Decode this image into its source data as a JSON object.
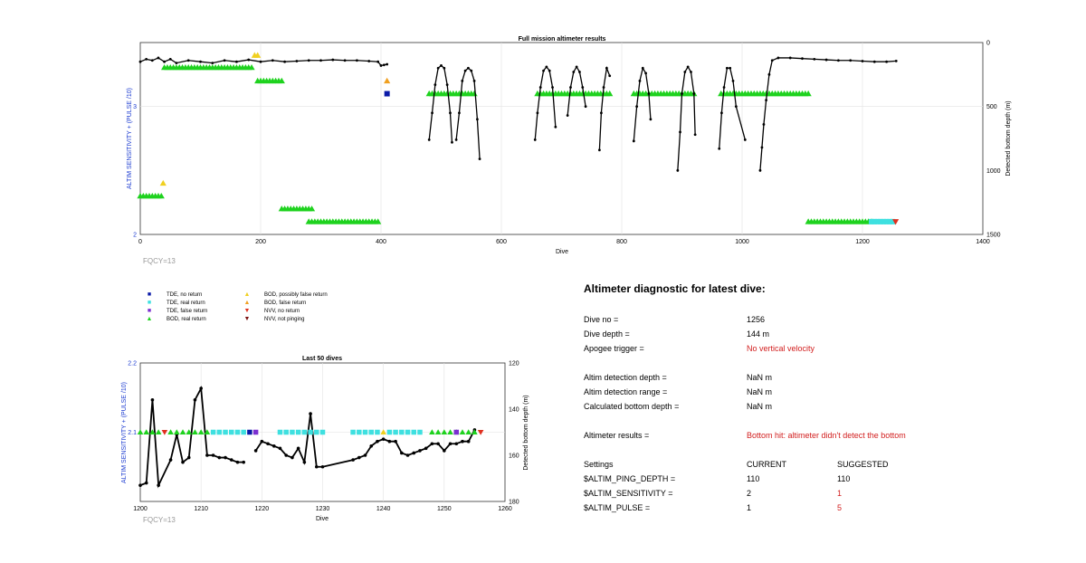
{
  "top_chart": {
    "title": "Full mission altimeter results",
    "ylabel_left": "ALTIM SENSITIVITY + (PULSE /10)",
    "ylabel_right": "Detected bottom depth (m)",
    "xlabel": "Dive",
    "x_ticks": [
      "0",
      "200",
      "400",
      "600",
      "800",
      "1000",
      "1200",
      "1400"
    ],
    "y_left_ticks": [
      "2",
      "3"
    ],
    "y_right_ticks": [
      "0",
      "500",
      "1000",
      "1500"
    ],
    "footnote": "FQCY=13"
  },
  "bottom_chart": {
    "title": "Last 50 dives",
    "ylabel_left": "ALTIM SENSITIVITY + (PULSE /10)",
    "ylabel_right": "Detected bottom depth (m)",
    "xlabel": "Dive",
    "x_ticks": [
      "1200",
      "1210",
      "1220",
      "1230",
      "1240",
      "1250",
      "1260"
    ],
    "y_left_ticks": [
      "2.1",
      "2.2"
    ],
    "y_right_ticks": [
      "120",
      "140",
      "160",
      "180"
    ],
    "footnote": "FQCY=13"
  },
  "legend": {
    "items": [
      {
        "label": "TDE, no return",
        "color": "#0a1aa8",
        "shape": "square"
      },
      {
        "label": "TDE, real return",
        "color": "#3ee0e0",
        "shape": "square"
      },
      {
        "label": "TDE, false return",
        "color": "#7a2fd0",
        "shape": "square"
      },
      {
        "label": "BOD, real return",
        "color": "#1ed21e",
        "shape": "triangle-up"
      },
      {
        "label": "BOD, possibly false return",
        "color": "#f0d020",
        "shape": "triangle-up"
      },
      {
        "label": "BOD, false return",
        "color": "#f0a020",
        "shape": "triangle-up"
      },
      {
        "label": "NVV, no return",
        "color": "#e03020",
        "shape": "triangle-down"
      },
      {
        "label": "NVV, not pinging",
        "color": "#7a1010",
        "shape": "triangle-down"
      }
    ]
  },
  "diagnostic": {
    "title": "Altimeter diagnostic for latest dive:",
    "dive_no_label": "Dive no =",
    "dive_no": "1256",
    "dive_depth_label": "Dive depth =",
    "dive_depth": "144 m",
    "apogee_label": "Apogee trigger =",
    "apogee": "No vertical velocity",
    "altim_depth_label": "Altim detection depth =",
    "altim_depth": "NaN m",
    "altim_range_label": "Altim detection range =",
    "altim_range": "NaN m",
    "calc_depth_label": "Calculated bottom depth =",
    "calc_depth": "NaN m",
    "results_label": "Altimeter results =",
    "results": "Bottom hit: altimeter didn't detect the bottom",
    "settings_label": "Settings",
    "current_label": "CURRENT",
    "suggested_label": "SUGGESTED",
    "settings": [
      {
        "name": "$ALTIM_PING_DEPTH =",
        "current": "110",
        "suggested": "110",
        "changed": false
      },
      {
        "name": "$ALTIM_SENSITIVITY =",
        "current": "2",
        "suggested": "1",
        "changed": true
      },
      {
        "name": "$ALTIM_PULSE =",
        "current": "1",
        "suggested": "5",
        "changed": true
      }
    ]
  },
  "chart_data": [
    {
      "type": "scatter",
      "title": "Full mission altimeter results",
      "xlabel": "Dive",
      "ylabel_left": "ALTIM SENSITIVITY + (PULSE /10)",
      "ylabel_right": "Detected bottom depth (m)",
      "xlim": [
        0,
        1400
      ],
      "ylim_left": [
        2,
        3.5
      ],
      "ylim_right": [
        1500,
        0
      ],
      "grid": true,
      "depth_series": [
        {
          "segment": 1,
          "points": [
            [
              0,
              150
            ],
            [
              10,
              130
            ],
            [
              20,
              140
            ],
            [
              30,
              120
            ],
            [
              40,
              150
            ],
            [
              50,
              130
            ],
            [
              60,
              160
            ],
            [
              80,
              140
            ],
            [
              100,
              150
            ],
            [
              120,
              160
            ],
            [
              140,
              140
            ],
            [
              160,
              150
            ],
            [
              180,
              135
            ],
            [
              200,
              150
            ],
            [
              220,
              140
            ],
            [
              240,
              150
            ],
            [
              260,
              145
            ],
            [
              280,
              140
            ],
            [
              300,
              140
            ],
            [
              320,
              135
            ],
            [
              340,
              140
            ],
            [
              360,
              140
            ],
            [
              380,
              145
            ],
            [
              395,
              150
            ],
            [
              400,
              180
            ],
            [
              405,
              175
            ],
            [
              410,
              170
            ]
          ]
        },
        {
          "segment": 2,
          "points": [
            [
              480,
              760
            ],
            [
              485,
              550
            ],
            [
              490,
              330
            ],
            [
              495,
              200
            ],
            [
              500,
              180
            ],
            [
              505,
              200
            ],
            [
              510,
              330
            ],
            [
              515,
              550
            ],
            [
              518,
              780
            ]
          ]
        },
        {
          "segment": 3,
          "points": [
            [
              525,
              760
            ],
            [
              530,
              550
            ],
            [
              535,
              300
            ],
            [
              540,
              220
            ],
            [
              545,
              200
            ],
            [
              550,
              220
            ],
            [
              555,
              300
            ],
            [
              560,
              600
            ],
            [
              564,
              910
            ]
          ]
        },
        {
          "segment": 4,
          "points": [
            [
              656,
              760
            ],
            [
              660,
              550
            ],
            [
              665,
              350
            ],
            [
              670,
              220
            ],
            [
              675,
              190
            ],
            [
              680,
              220
            ],
            [
              685,
              350
            ],
            [
              690,
              660
            ]
          ]
        },
        {
          "segment": 5,
          "points": [
            [
              710,
              570
            ],
            [
              715,
              350
            ],
            [
              720,
              230
            ],
            [
              725,
              190
            ],
            [
              730,
              230
            ],
            [
              735,
              350
            ],
            [
              740,
              500
            ]
          ]
        },
        {
          "segment": 6,
          "points": [
            [
              763,
              840
            ],
            [
              766,
              550
            ],
            [
              770,
              350
            ],
            [
              775,
              200
            ],
            [
              780,
              260
            ]
          ]
        },
        {
          "segment": 7,
          "points": [
            [
              820,
              770
            ],
            [
              825,
              500
            ],
            [
              830,
              300
            ],
            [
              835,
              200
            ],
            [
              840,
              240
            ],
            [
              845,
              400
            ],
            [
              848,
              600
            ]
          ]
        },
        {
          "segment": 8,
          "points": [
            [
              893,
              1000
            ],
            [
              897,
              700
            ],
            [
              900,
              400
            ],
            [
              905,
              230
            ],
            [
              910,
              190
            ],
            [
              915,
              230
            ],
            [
              920,
              400
            ],
            [
              922,
              720
            ]
          ]
        },
        {
          "segment": 9,
          "points": [
            [
              962,
              830
            ],
            [
              966,
              550
            ],
            [
              970,
              350
            ],
            [
              975,
              200
            ],
            [
              980,
              200
            ],
            [
              985,
              300
            ],
            [
              990,
              500
            ],
            [
              1005,
              760
            ]
          ]
        },
        {
          "segment": 10,
          "points": [
            [
              1030,
              1000
            ],
            [
              1033,
              820
            ],
            [
              1036,
              640
            ],
            [
              1040,
              450
            ],
            [
              1045,
              250
            ],
            [
              1050,
              140
            ],
            [
              1060,
              120
            ],
            [
              1080,
              120
            ],
            [
              1100,
              125
            ],
            [
              1120,
              130
            ],
            [
              1140,
              135
            ],
            [
              1160,
              140
            ],
            [
              1180,
              140
            ],
            [
              1200,
              145
            ],
            [
              1220,
              150
            ],
            [
              1240,
              150
            ],
            [
              1256,
              144
            ]
          ]
        }
      ],
      "marker_bands": [
        {
          "kind": "BOD, real return",
          "x": [
            40,
            185
          ],
          "sensitivity": 3.305
        },
        {
          "kind": "BOD, real return",
          "x": [
            195,
            235
          ],
          "sensitivity": 3.2
        },
        {
          "kind": "BOD, real return",
          "x": [
            0,
            35
          ],
          "sensitivity": 2.3
        },
        {
          "kind": "BOD, real return",
          "x": [
            235,
            285
          ],
          "sensitivity": 2.2
        },
        {
          "kind": "BOD, real return",
          "x": [
            280,
            395
          ],
          "sensitivity": 2.1
        },
        {
          "kind": "BOD, real return",
          "x": [
            480,
            555
          ],
          "sensitivity": 3.1
        },
        {
          "kind": "BOD, real return",
          "x": [
            660,
            780
          ],
          "sensitivity": 3.1
        },
        {
          "kind": "BOD, real return",
          "x": [
            820,
            920
          ],
          "sensitivity": 3.1
        },
        {
          "kind": "BOD, real return",
          "x": [
            965,
            1110
          ],
          "sensitivity": 3.1
        },
        {
          "kind": "BOD, real return",
          "x": [
            1110,
            1215
          ],
          "sensitivity": 2.1
        },
        {
          "kind": "BOD, possibly false return",
          "x": [
            190,
            195
          ],
          "sensitivity": 3.4
        },
        {
          "kind": "BOD, possibly false return",
          "x": [
            38,
            42
          ],
          "sensitivity": 2.4
        },
        {
          "kind": "BOD, false return",
          "x": [
            410,
            412
          ],
          "sensitivity": 3.2
        },
        {
          "kind": "TDE, no return",
          "x": [
            410,
            412
          ],
          "sensitivity": 3.1
        },
        {
          "kind": "TDE, real return",
          "x": [
            1215,
            1250
          ],
          "sensitivity": 2.1
        },
        {
          "kind": "NVV, no return",
          "x": [
            1255,
            1256
          ],
          "sensitivity": 2.1
        }
      ]
    },
    {
      "type": "line",
      "title": "Last 50 dives",
      "xlabel": "Dive",
      "ylabel_left": "ALTIM SENSITIVITY + (PULSE /10)",
      "ylabel_right": "Detected bottom depth (m)",
      "xlim": [
        1200,
        1260
      ],
      "ylim_left": [
        2.0,
        2.2
      ],
      "ylim_right": [
        180,
        120
      ],
      "grid": true,
      "depth_series": [
        {
          "segment": 1,
          "points": [
            [
              1200,
              173
            ],
            [
              1201,
              172
            ],
            [
              1202,
              136
            ],
            [
              1203,
              173
            ],
            [
              1205,
              162
            ],
            [
              1206,
              151
            ],
            [
              1207,
              163
            ],
            [
              1208,
              161
            ],
            [
              1209,
              136
            ],
            [
              1210,
              131
            ],
            [
              1211,
              160
            ],
            [
              1212,
              160
            ],
            [
              1213,
              161
            ],
            [
              1214,
              161
            ],
            [
              1215,
              162
            ],
            [
              1216,
              163
            ],
            [
              1217,
              163
            ]
          ]
        },
        {
          "segment": 2,
          "points": [
            [
              1219,
              158
            ],
            [
              1220,
              154
            ],
            [
              1221,
              155
            ],
            [
              1222,
              156
            ],
            [
              1223,
              157
            ],
            [
              1224,
              160
            ],
            [
              1225,
              161
            ],
            [
              1226,
              157
            ],
            [
              1227,
              163
            ],
            [
              1228,
              142
            ],
            [
              1229,
              165
            ],
            [
              1230,
              165
            ],
            [
              1235,
              162
            ],
            [
              1236,
              161
            ],
            [
              1237,
              160
            ],
            [
              1238,
              156
            ],
            [
              1239,
              154
            ],
            [
              1240,
              153
            ],
            [
              1241,
              154
            ],
            [
              1242,
              154
            ],
            [
              1243,
              159
            ],
            [
              1244,
              160
            ],
            [
              1245,
              159
            ],
            [
              1246,
              158
            ],
            [
              1247,
              157
            ],
            [
              1248,
              155
            ],
            [
              1249,
              155
            ],
            [
              1250,
              158
            ],
            [
              1251,
              155
            ],
            [
              1252,
              155
            ],
            [
              1253,
              154
            ],
            [
              1254,
              154
            ],
            [
              1255,
              149
            ]
          ]
        }
      ],
      "markers": [
        {
          "kind": "BOD, real return",
          "dives": [
            1200,
            1201,
            1202,
            1203,
            1205,
            1206,
            1207,
            1208,
            1209,
            1210,
            1211,
            1248,
            1249,
            1250,
            1251,
            1252,
            1253,
            1254,
            1255
          ]
        },
        {
          "kind": "NVV, no return",
          "dives": [
            1204,
            1256
          ]
        },
        {
          "kind": "TDE, real return",
          "dives": [
            1212,
            1213,
            1214,
            1215,
            1216,
            1217,
            1223,
            1224,
            1225,
            1226,
            1227,
            1228,
            1229,
            1230,
            1235,
            1236,
            1237,
            1238,
            1239,
            1241,
            1242,
            1243,
            1244,
            1245,
            1246
          ]
        },
        {
          "kind": "TDE, no return",
          "dives": [
            1218
          ]
        },
        {
          "kind": "TDE, false return",
          "dives": [
            1219,
            1252
          ]
        },
        {
          "kind": "BOD, possibly false return",
          "dives": [
            1240
          ]
        }
      ],
      "sensitivity_value": 2.1
    }
  ]
}
